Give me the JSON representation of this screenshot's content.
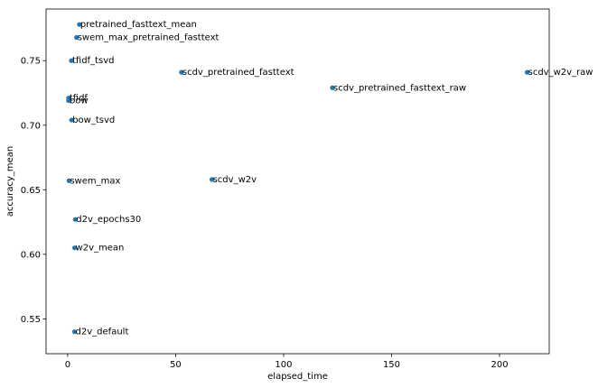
{
  "chart_data": {
    "type": "scatter",
    "title": "",
    "xlabel": "elapsed_time",
    "ylabel": "accuracy_mean",
    "xlim": [
      -10,
      223
    ],
    "ylim": [
      0.523,
      0.79
    ],
    "x_ticks": [
      0,
      50,
      100,
      150,
      200
    ],
    "x_tick_labels": [
      "0",
      "50",
      "100",
      "150",
      "200"
    ],
    "y_ticks": [
      0.55,
      0.6,
      0.65,
      0.7,
      0.75
    ],
    "y_tick_labels": [
      "0.55",
      "0.60",
      "0.65",
      "0.70",
      "0.75"
    ],
    "grid": false,
    "legend": "none",
    "point_color": "#1f77b4",
    "points": [
      {
        "label": "pretrained_fasttext_mean",
        "x": 5.4,
        "y": 0.778
      },
      {
        "label": "swem_max_pretrained_fasttext",
        "x": 4.1,
        "y": 0.768
      },
      {
        "label": "tfidf_tsvd",
        "x": 1.7,
        "y": 0.75
      },
      {
        "label": "scdv_pretrained_fasttext",
        "x": 52.7,
        "y": 0.741
      },
      {
        "label": "scdv_w2v_raw",
        "x": 212.8,
        "y": 0.741
      },
      {
        "label": "scdv_pretrained_fasttext_raw",
        "x": 122.6,
        "y": 0.729
      },
      {
        "label": "tfidf",
        "x": 0.4,
        "y": 0.721
      },
      {
        "label": "bow",
        "x": 0.4,
        "y": 0.719
      },
      {
        "label": "bow_tsvd",
        "x": 1.8,
        "y": 0.704
      },
      {
        "label": "scdv_w2v",
        "x": 66.8,
        "y": 0.658
      },
      {
        "label": "swem_max",
        "x": 0.6,
        "y": 0.657
      },
      {
        "label": "d2v_epochs30",
        "x": 3.5,
        "y": 0.627
      },
      {
        "label": "w2v_mean",
        "x": 3.2,
        "y": 0.605
      },
      {
        "label": "d2v_default",
        "x": 3.2,
        "y": 0.54
      }
    ]
  }
}
